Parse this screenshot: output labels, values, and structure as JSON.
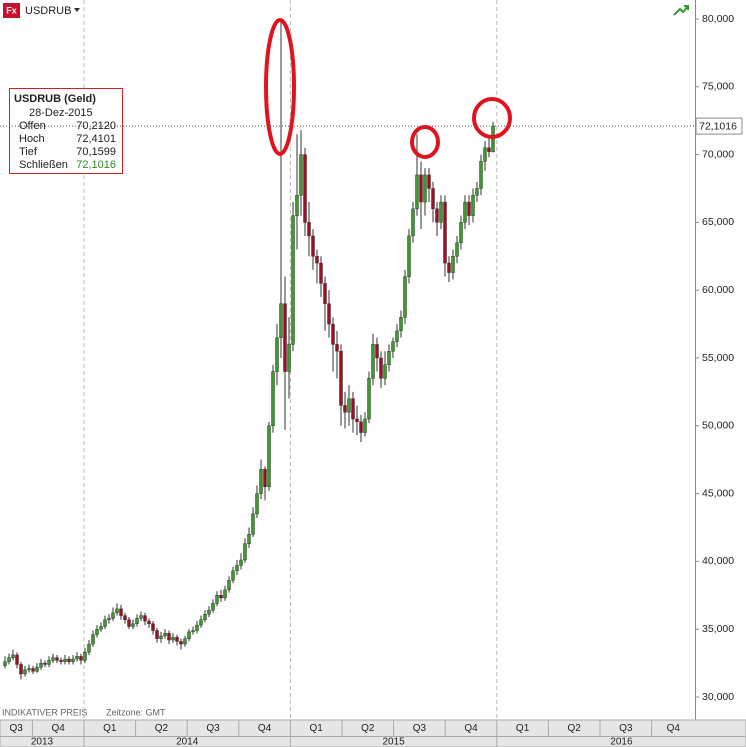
{
  "header": {
    "icon": "Fx",
    "symbol": "USDRUB"
  },
  "info_box": {
    "title": "USDRUB (Geld)",
    "date": "28-Dez-2015",
    "rows": [
      {
        "label": "Offen",
        "value": "70,2120"
      },
      {
        "label": "Hoch",
        "value": "72,4101"
      },
      {
        "label": "Tief",
        "value": "70,1599"
      },
      {
        "label": "Schließen",
        "value": "72,1016"
      }
    ]
  },
  "footer": {
    "note": "INDIKATIVER PREIS",
    "timezone": "Zeitzone: GMT"
  },
  "chart_data": {
    "type": "candlestick",
    "open": [
      32.3,
      32.6,
      32.9,
      33.1,
      32.4,
      31.7,
      32,
      32.1,
      31.9,
      32.2,
      32.5,
      32.4,
      32.7,
      32.9,
      32.7,
      32.6,
      32.8,
      32.6,
      32.8,
      33,
      32.7,
      33.3,
      33.9,
      34.6,
      35,
      35.2,
      35.7,
      35.8,
      36.2,
      36.5,
      36,
      35.7,
      35.2,
      35.4,
      35.8,
      36,
      35.6,
      35.4,
      34.9,
      34.3,
      34.5,
      34.7,
      34.2,
      34.4,
      34.1,
      33.9,
      34.3,
      34.8,
      34.9,
      35.3,
      35.7,
      36.1,
      36.4,
      36.9,
      37.5,
      37.3,
      37.9,
      38.6,
      39.3,
      39.7,
      40.1,
      41.3,
      42,
      43.5,
      45,
      46.8,
      45.5,
      50,
      54,
      56.5,
      59,
      54,
      56,
      65.5,
      67,
      70,
      65,
      64,
      62.5,
      62,
      60.5,
      59,
      57.5,
      56,
      55.5,
      51.5,
      51,
      52,
      50.5,
      50.3,
      49.5,
      50.5,
      53.5,
      56,
      55,
      53.5,
      54.5,
      55.5,
      56.2,
      57,
      58,
      61,
      64,
      66,
      68.5,
      66.5,
      68.5,
      67.5,
      66,
      65,
      66.5,
      62,
      61.3,
      62.5,
      63.5,
      65,
      66.5,
      65.5,
      67,
      67.5,
      69.5,
      70.5,
      70.212
    ],
    "high": [
      33,
      33.2,
      33.5,
      33.3,
      32.6,
      32.3,
      32.4,
      32.3,
      32.5,
      32.8,
      32.7,
      33,
      33.2,
      33.1,
      32.9,
      33.1,
      33,
      33.1,
      33.3,
      33.2,
      33.6,
      34.2,
      34.9,
      35.3,
      35.5,
      36,
      36.1,
      36.6,
      36.9,
      36.8,
      36.2,
      35.9,
      35.7,
      36.1,
      36.3,
      36.2,
      35.8,
      35.6,
      35.1,
      34.8,
      35,
      34.9,
      34.7,
      34.6,
      34.3,
      34.5,
      35,
      35.2,
      35.6,
      36,
      36.4,
      36.7,
      37.2,
      37.8,
      37.9,
      38.2,
      38.9,
      39.6,
      40.1,
      40.6,
      41.7,
      42.5,
      44,
      45.6,
      47.5,
      47,
      50.3,
      54.5,
      57.5,
      80,
      61,
      58,
      66.5,
      71.5,
      71.8,
      70.5,
      66.5,
      64.5,
      63,
      62.5,
      61,
      60,
      58,
      57,
      56,
      52.5,
      53,
      52.5,
      51.5,
      50.8,
      51,
      54,
      56.8,
      56.5,
      55.5,
      55.5,
      56,
      56.5,
      57.5,
      58.5,
      61.5,
      64.5,
      66.5,
      71.5,
      69.5,
      69,
      69,
      68,
      66.5,
      67,
      67,
      62.5,
      63,
      64,
      65.5,
      67,
      67,
      67.5,
      68,
      70,
      71,
      71.3,
      72.4101
    ],
    "low": [
      32.1,
      32.4,
      32.7,
      32.1,
      31.3,
      31.5,
      31.8,
      31.7,
      31.8,
      32,
      32.2,
      32.2,
      32.5,
      32.5,
      32.4,
      32.4,
      32.4,
      32.4,
      32.6,
      32.4,
      32.5,
      33.1,
      33.7,
      34.4,
      34.8,
      35,
      35.4,
      35.6,
      36,
      35.7,
      35.4,
      35,
      35,
      35.2,
      35.6,
      35.3,
      35.1,
      34.6,
      34,
      34,
      34.3,
      33.9,
      34,
      33.8,
      33.5,
      33.7,
      34.1,
      34.6,
      34.7,
      35.1,
      35.5,
      35.9,
      36.2,
      36.7,
      37,
      37.1,
      37.7,
      38.4,
      39,
      39.4,
      39.9,
      41,
      41.8,
      43.2,
      44.6,
      44.5,
      45.2,
      49.5,
      53,
      55,
      49.7,
      52,
      55.5,
      63,
      65.5,
      64,
      62.5,
      61.5,
      60.5,
      59.5,
      57,
      56.5,
      54,
      53.5,
      50,
      49.8,
      50,
      49.5,
      49.3,
      48.8,
      49.2,
      50.2,
      53,
      54,
      52.8,
      53,
      54,
      55,
      55.8,
      56.5,
      57.5,
      60.5,
      63.5,
      65.5,
      64.5,
      65.5,
      66.5,
      65,
      64,
      64.5,
      61,
      60.6,
      60.8,
      62,
      63,
      64.5,
      64.8,
      65,
      66.5,
      67,
      68.8,
      69.8,
      70.1599
    ],
    "close": [
      32.6,
      32.9,
      33.1,
      32.4,
      31.7,
      32,
      32.1,
      31.9,
      32.2,
      32.5,
      32.4,
      32.7,
      32.9,
      32.7,
      32.6,
      32.8,
      32.6,
      32.8,
      33,
      32.7,
      33.3,
      33.9,
      34.6,
      35,
      35.2,
      35.7,
      35.8,
      36.2,
      36.5,
      36,
      35.7,
      35.2,
      35.4,
      35.8,
      36,
      35.6,
      35.4,
      34.9,
      34.3,
      34.5,
      34.7,
      34.2,
      34.4,
      34.1,
      33.9,
      34.3,
      34.8,
      34.9,
      35.3,
      35.7,
      36.1,
      36.4,
      36.9,
      37.5,
      37.3,
      37.9,
      38.6,
      39.3,
      39.7,
      40.1,
      41.3,
      42,
      43.5,
      45,
      46.8,
      45.5,
      50,
      54,
      56.5,
      59,
      54,
      56,
      65.5,
      67,
      70,
      65,
      64,
      62.5,
      62,
      60.5,
      59,
      57.5,
      56,
      55.5,
      51.5,
      51,
      52,
      50.5,
      50.3,
      49.5,
      50.5,
      53.5,
      56,
      55,
      53.5,
      54.5,
      55.5,
      56.2,
      57,
      58,
      61,
      64,
      66,
      68.5,
      66.5,
      68.5,
      67.5,
      66,
      65,
      66.5,
      62,
      61.3,
      62.5,
      63.5,
      65,
      66.5,
      65.5,
      67,
      67.5,
      69.5,
      70.5,
      70.212,
      72.1016
    ],
    "up_color": "#3c9a2c",
    "down_color": "#9c1024",
    "wick_color": "#333333",
    "ylim": [
      28.45,
      81.4
    ],
    "yticks": [
      {
        "value": 30,
        "label": "30,000"
      },
      {
        "value": 35,
        "label": "35,000"
      },
      {
        "value": 40,
        "label": "40,000"
      },
      {
        "value": 45,
        "label": "45,000"
      },
      {
        "value": 50,
        "label": "50,000"
      },
      {
        "value": 55,
        "label": "55,000"
      },
      {
        "value": 60,
        "label": "60,000"
      },
      {
        "value": 65,
        "label": "65,000"
      },
      {
        "value": 70,
        "label": "70,000"
      },
      {
        "value": 75,
        "label": "75,000"
      },
      {
        "value": 80,
        "label": "80,000"
      }
    ],
    "last_price": {
      "value": 72.1016,
      "label": "72,1016"
    },
    "quarters": [
      "Q3",
      "Q4",
      "Q1",
      "Q2",
      "Q3",
      "Q4",
      "Q1",
      "Q2",
      "Q3",
      "Q4",
      "Q1",
      "Q2",
      "Q3",
      "Q4"
    ],
    "years": [
      "2013",
      "2014",
      "2015",
      "2016"
    ]
  }
}
